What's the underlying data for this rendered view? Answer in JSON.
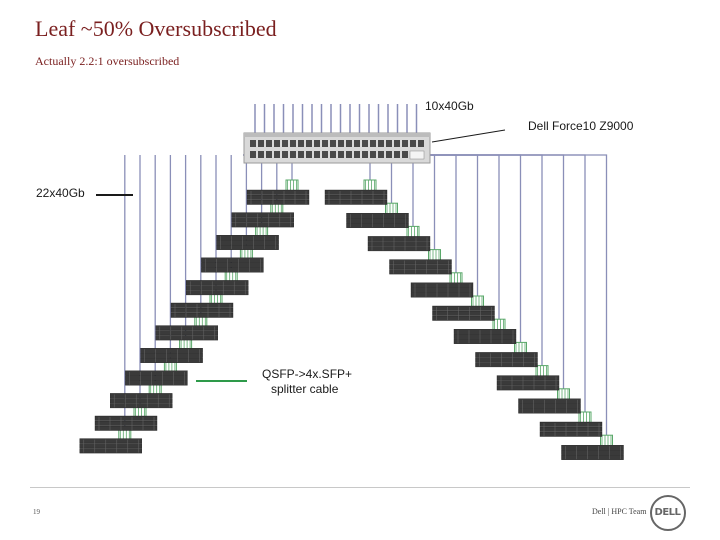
{
  "title": "Leaf ~50% Oversubscribed",
  "subtitle": "Actually 2.2:1 oversubscribed",
  "labels": {
    "uplinks": "10x40Gb",
    "switch": "Dell Force10 Z9000",
    "downlinks": "22x40Gb",
    "cable_line1": "QSFP->4x.SFP+",
    "cable_line2": "splitter cable"
  },
  "footer": {
    "page": "19",
    "team": "Dell | HPC Team",
    "logo": "DELL"
  },
  "colors": {
    "title": "#7a1f1f",
    "link": "#8a8fb8",
    "splitter": "#5aa86a",
    "pointer": "#1a1a1a",
    "cable_pointer": "#2e9a4a"
  }
}
